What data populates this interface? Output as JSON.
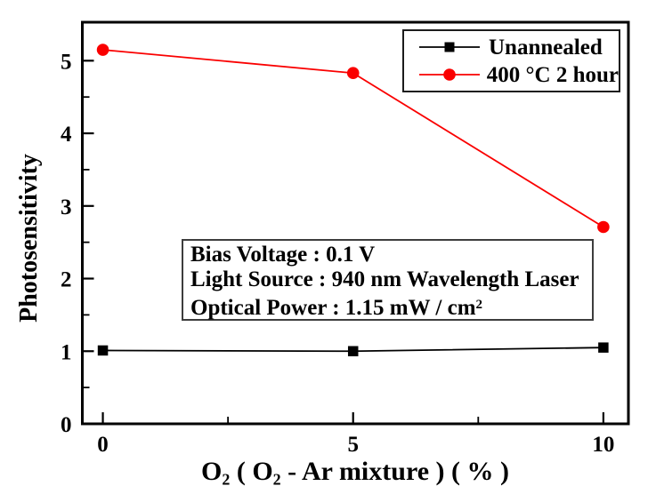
{
  "chart_data": {
    "type": "line",
    "title": "",
    "ylabel": "Photosensitivity",
    "xlabel_plain": "O2 ( O2 - Ar mixture ) ( % )",
    "xlabel_parts": [
      "O",
      "2",
      " ( O",
      "2",
      " - Ar mixture ) ( % )"
    ],
    "x": [
      0,
      5,
      10
    ],
    "series": [
      {
        "name": "Unannealed",
        "color": "#000000",
        "marker": "square",
        "values": [
          1.01,
          1.0,
          1.05
        ]
      },
      {
        "name": "400 °C 2 hour",
        "color": "#fa0000",
        "marker": "circle",
        "values": [
          5.15,
          4.83,
          2.71
        ]
      }
    ],
    "xlim": [
      -0.41,
      10.5
    ],
    "ylim": [
      0,
      5.53
    ],
    "x_ticks": {
      "major": [
        0,
        5,
        10
      ],
      "labels": [
        "0",
        "5",
        "10"
      ],
      "minor": [
        2.5,
        7.5
      ]
    },
    "y_ticks": {
      "major": [
        0,
        1,
        2,
        3,
        4,
        5
      ],
      "labels": [
        "0",
        "1",
        "2",
        "3",
        "4",
        "5"
      ],
      "minor": [
        0.5,
        1.5,
        2.5,
        3.5,
        4.5
      ]
    },
    "grid": false,
    "legend_position": "top-right"
  },
  "annotation": {
    "line1": "Bias Voltage : 0.1 V",
    "line2": "Light Source : 940 nm Wavelength Laser",
    "line3_base": "Optical Power : 1.15 mW / cm",
    "line3_superscript": "2"
  },
  "colors": {
    "background": "#ffffff",
    "axis": "#000000",
    "text": "#000000",
    "series_unannealed": "#000000",
    "series_annealed": "#fa0000"
  }
}
